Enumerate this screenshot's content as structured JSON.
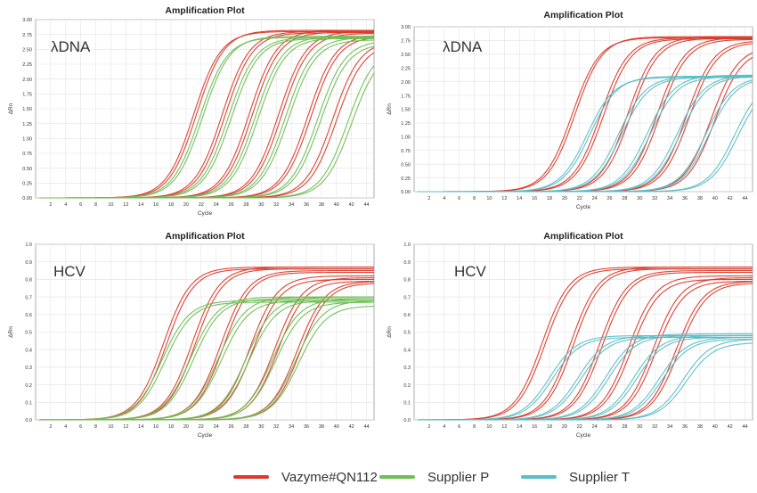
{
  "legend": [
    {
      "label": "Vazyme#QN112",
      "color": "#d93a2b"
    },
    {
      "label": "Supplier P",
      "color": "#6fbd55"
    },
    {
      "label": "Supplier T",
      "color": "#5bbdc6"
    }
  ],
  "chart_data": [
    {
      "type": "line",
      "title": "Amplification Plot",
      "annotation": "λDNA",
      "xlabel": "Cycle",
      "ylabel": "ΔRn",
      "xlim": [
        0,
        45
      ],
      "ylim": [
        0,
        3.0
      ],
      "xticks": [
        2,
        4,
        6,
        8,
        10,
        12,
        14,
        16,
        18,
        20,
        22,
        24,
        26,
        28,
        30,
        32,
        34,
        36,
        38,
        40,
        42,
        44
      ],
      "yticks": [
        "0.00",
        "0.25",
        "0.50",
        "0.75",
        "1.00",
        "1.25",
        "1.50",
        "1.75",
        "2.00",
        "2.25",
        "2.50",
        "2.75",
        "3.00"
      ],
      "grid": true,
      "series": [
        {
          "group": "Vazyme#QN112",
          "color": "#d93a2b",
          "curves": [
            {
              "ct": 21.0,
              "plateau": 2.8
            },
            {
              "ct": 21.4,
              "plateau": 2.82
            },
            {
              "ct": 24.8,
              "plateau": 2.8
            },
            {
              "ct": 25.2,
              "plateau": 2.78
            },
            {
              "ct": 28.4,
              "plateau": 2.82
            },
            {
              "ct": 28.8,
              "plateau": 2.79
            },
            {
              "ct": 32.3,
              "plateau": 2.8
            },
            {
              "ct": 32.7,
              "plateau": 2.77
            },
            {
              "ct": 36.2,
              "plateau": 2.75
            },
            {
              "ct": 36.6,
              "plateau": 2.72
            },
            {
              "ct": 39.5,
              "plateau": 2.65
            },
            {
              "ct": 40.0,
              "plateau": 2.6
            }
          ]
        },
        {
          "group": "Supplier P",
          "color": "#6fbd55",
          "curves": [
            {
              "ct": 21.8,
              "plateau": 2.7
            },
            {
              "ct": 22.2,
              "plateau": 2.72
            },
            {
              "ct": 25.6,
              "plateau": 2.7
            },
            {
              "ct": 26.0,
              "plateau": 2.68
            },
            {
              "ct": 29.2,
              "plateau": 2.72
            },
            {
              "ct": 29.6,
              "plateau": 2.69
            },
            {
              "ct": 33.2,
              "plateau": 2.7
            },
            {
              "ct": 33.6,
              "plateau": 2.66
            },
            {
              "ct": 37.5,
              "plateau": 2.65
            },
            {
              "ct": 37.9,
              "plateau": 2.6
            },
            {
              "ct": 41.5,
              "plateau": 2.55
            },
            {
              "ct": 42.0,
              "plateau": 2.5
            }
          ]
        }
      ]
    },
    {
      "type": "line",
      "title": "Amplification Plot",
      "annotation": "λDNA",
      "xlabel": "Cycle",
      "ylabel": "ΔRn",
      "xlim": [
        0,
        45
      ],
      "ylim": [
        0,
        3.0
      ],
      "xticks": [
        2,
        4,
        6,
        8,
        10,
        12,
        14,
        16,
        18,
        20,
        22,
        24,
        26,
        28,
        30,
        32,
        34,
        36,
        38,
        40,
        42,
        44
      ],
      "yticks": [
        "0.00",
        "0.25",
        "0.50",
        "0.75",
        "1.00",
        "1.25",
        "1.50",
        "1.75",
        "2.00",
        "2.25",
        "2.50",
        "2.75",
        "3.00"
      ],
      "grid": true,
      "series": [
        {
          "group": "Vazyme#QN112",
          "color": "#d93a2b",
          "curves": [
            {
              "ct": 21.0,
              "plateau": 2.8
            },
            {
              "ct": 21.4,
              "plateau": 2.82
            },
            {
              "ct": 24.8,
              "plateau": 2.8
            },
            {
              "ct": 25.2,
              "plateau": 2.78
            },
            {
              "ct": 28.4,
              "plateau": 2.82
            },
            {
              "ct": 28.8,
              "plateau": 2.79
            },
            {
              "ct": 32.3,
              "plateau": 2.8
            },
            {
              "ct": 32.7,
              "plateau": 2.77
            },
            {
              "ct": 36.2,
              "plateau": 2.75
            },
            {
              "ct": 36.6,
              "plateau": 2.72
            },
            {
              "ct": 39.5,
              "plateau": 2.65
            },
            {
              "ct": 40.0,
              "plateau": 2.6
            }
          ]
        },
        {
          "group": "Supplier T",
          "color": "#5bbdc6",
          "curves": [
            {
              "ct": 23.0,
              "plateau": 2.08
            },
            {
              "ct": 23.4,
              "plateau": 2.1
            },
            {
              "ct": 27.2,
              "plateau": 2.1
            },
            {
              "ct": 27.6,
              "plateau": 2.08
            },
            {
              "ct": 31.0,
              "plateau": 2.12
            },
            {
              "ct": 31.4,
              "plateau": 2.09
            },
            {
              "ct": 35.0,
              "plateau": 2.12
            },
            {
              "ct": 35.4,
              "plateau": 2.1
            },
            {
              "ct": 38.8,
              "plateau": 2.1
            },
            {
              "ct": 39.2,
              "plateau": 2.08
            },
            {
              "ct": 42.6,
              "plateau": 2.05
            },
            {
              "ct": 43.0,
              "plateau": 2.0
            }
          ]
        }
      ]
    },
    {
      "type": "line",
      "title": "Amplification Plot",
      "annotation": "HCV",
      "xlabel": "Cycle",
      "ylabel": "ΔRn",
      "xlim": [
        0,
        45
      ],
      "ylim": [
        0,
        1.0
      ],
      "xticks": [
        2,
        4,
        6,
        8,
        10,
        12,
        14,
        16,
        18,
        20,
        22,
        24,
        26,
        28,
        30,
        32,
        34,
        36,
        38,
        40,
        42,
        44
      ],
      "yticks": [
        "0.0",
        "0.1",
        "0.2",
        "0.3",
        "0.4",
        "0.5",
        "0.6",
        "0.7",
        "0.8",
        "0.9",
        "1.0"
      ],
      "grid": true,
      "series": [
        {
          "group": "Vazyme#QN112",
          "color": "#d93a2b",
          "curves": [
            {
              "ct": 17.0,
              "plateau": 0.87
            },
            {
              "ct": 17.4,
              "plateau": 0.86
            },
            {
              "ct": 20.8,
              "plateau": 0.87
            },
            {
              "ct": 21.2,
              "plateau": 0.86
            },
            {
              "ct": 24.6,
              "plateau": 0.85
            },
            {
              "ct": 25.0,
              "plateau": 0.84
            },
            {
              "ct": 28.5,
              "plateau": 0.82
            },
            {
              "ct": 28.9,
              "plateau": 0.8
            },
            {
              "ct": 31.8,
              "plateau": 0.81
            },
            {
              "ct": 32.2,
              "plateau": 0.79
            },
            {
              "ct": 34.8,
              "plateau": 0.79
            },
            {
              "ct": 35.2,
              "plateau": 0.78
            }
          ]
        },
        {
          "group": "Supplier P",
          "color": "#6fbd55",
          "curves": [
            {
              "ct": 16.8,
              "plateau": 0.68
            },
            {
              "ct": 17.2,
              "plateau": 0.67
            },
            {
              "ct": 20.6,
              "plateau": 0.7
            },
            {
              "ct": 21.0,
              "plateau": 0.69
            },
            {
              "ct": 24.3,
              "plateau": 0.7
            },
            {
              "ct": 24.7,
              "plateau": 0.68
            },
            {
              "ct": 28.0,
              "plateau": 0.7
            },
            {
              "ct": 28.4,
              "plateau": 0.68
            },
            {
              "ct": 31.5,
              "plateau": 0.69
            },
            {
              "ct": 31.9,
              "plateau": 0.67
            },
            {
              "ct": 34.6,
              "plateau": 0.68
            },
            {
              "ct": 35.0,
              "plateau": 0.65
            }
          ]
        }
      ]
    },
    {
      "type": "line",
      "title": "Amplification Plot",
      "annotation": "HCV",
      "xlabel": "Cycle",
      "ylabel": "ΔRn",
      "xlim": [
        0,
        45
      ],
      "ylim": [
        0,
        1.0
      ],
      "xticks": [
        2,
        4,
        6,
        8,
        10,
        12,
        14,
        16,
        18,
        20,
        22,
        24,
        26,
        28,
        30,
        32,
        34,
        36,
        38,
        40,
        42,
        44
      ],
      "yticks": [
        "0.0",
        "0.1",
        "0.2",
        "0.3",
        "0.4",
        "0.5",
        "0.6",
        "0.7",
        "0.8",
        "0.9",
        "1.0"
      ],
      "grid": true,
      "series": [
        {
          "group": "Vazyme#QN112",
          "color": "#d93a2b",
          "curves": [
            {
              "ct": 17.0,
              "plateau": 0.87
            },
            {
              "ct": 17.4,
              "plateau": 0.86
            },
            {
              "ct": 20.8,
              "plateau": 0.87
            },
            {
              "ct": 21.2,
              "plateau": 0.86
            },
            {
              "ct": 24.6,
              "plateau": 0.85
            },
            {
              "ct": 25.0,
              "plateau": 0.84
            },
            {
              "ct": 28.5,
              "plateau": 0.82
            },
            {
              "ct": 28.9,
              "plateau": 0.8
            },
            {
              "ct": 31.8,
              "plateau": 0.81
            },
            {
              "ct": 32.2,
              "plateau": 0.79
            },
            {
              "ct": 34.8,
              "plateau": 0.79
            },
            {
              "ct": 35.2,
              "plateau": 0.78
            }
          ]
        },
        {
          "group": "Supplier T",
          "color": "#5bbdc6",
          "curves": [
            {
              "ct": 18.0,
              "plateau": 0.48
            },
            {
              "ct": 18.4,
              "plateau": 0.47
            },
            {
              "ct": 21.8,
              "plateau": 0.48
            },
            {
              "ct": 22.2,
              "plateau": 0.47
            },
            {
              "ct": 25.5,
              "plateau": 0.49
            },
            {
              "ct": 25.9,
              "plateau": 0.48
            },
            {
              "ct": 29.2,
              "plateau": 0.48
            },
            {
              "ct": 29.6,
              "plateau": 0.47
            },
            {
              "ct": 32.6,
              "plateau": 0.47
            },
            {
              "ct": 33.0,
              "plateau": 0.46
            },
            {
              "ct": 35.8,
              "plateau": 0.46
            },
            {
              "ct": 36.2,
              "plateau": 0.44
            }
          ]
        }
      ]
    }
  ]
}
